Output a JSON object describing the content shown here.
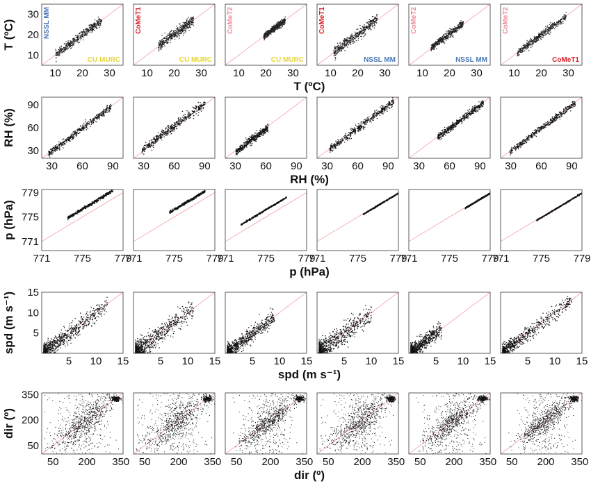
{
  "legend_colors": {
    "NSSL MM": "#4a78b4",
    "CoMeT1": "#d6202a",
    "CoMeT2": "#f08a96",
    "CU MURC": "#e7d534"
  },
  "one_to_one_line_color": "#f2a0a6",
  "chart_data": [
    {
      "variable": "T",
      "type": "scatter",
      "ylabel": "T (ºC)",
      "xlabel": "T (ºC)",
      "xlim": [
        5,
        35
      ],
      "ylim": [
        5,
        35
      ],
      "xticks": [
        10,
        20,
        30
      ],
      "yticks": [
        10,
        20,
        30
      ],
      "panel_labels": [
        {
          "y_source": "NSSL MM",
          "x_source": "CU MURC"
        },
        {
          "y_source": "CoMeT1",
          "x_source": "CU MURC"
        },
        {
          "y_source": "CoMeT2",
          "x_source": "CU MURC"
        },
        {
          "y_source": "CoMeT1",
          "x_source": "NSSL MM"
        },
        {
          "y_source": "CoMeT2",
          "x_source": "NSSL MM"
        },
        {
          "y_source": "CoMeT2",
          "x_source": "CoMeT1"
        }
      ],
      "panels": [
        {
          "x_range": [
            10,
            27
          ],
          "bias": 0.3,
          "spread": 1.0
        },
        {
          "x_range": [
            14,
            27
          ],
          "bias": 0.5,
          "spread": 1.3
        },
        {
          "x_range": [
            19,
            27
          ],
          "bias": 0.3,
          "spread": 0.8
        },
        {
          "x_range": [
            11,
            27
          ],
          "bias": 0.6,
          "spread": 1.3
        },
        {
          "x_range": [
            13,
            25
          ],
          "bias": 0.7,
          "spread": 0.9
        },
        {
          "x_range": [
            11,
            29
          ],
          "bias": 0.3,
          "spread": 0.9
        }
      ]
    },
    {
      "variable": "RH",
      "type": "scatter",
      "ylabel": "RH (%)",
      "xlabel": "RH (%)",
      "xlim": [
        20,
        100
      ],
      "ylim": [
        20,
        100
      ],
      "xticks": [
        30,
        60,
        90
      ],
      "yticks": [
        30,
        60,
        90
      ],
      "panels": [
        {
          "x_range": [
            26,
            88
          ],
          "bias": 0,
          "spread": 2.3
        },
        {
          "x_range": [
            28,
            90
          ],
          "bias": 3,
          "spread": 3.0
        },
        {
          "x_range": [
            30,
            62
          ],
          "bias": -1,
          "spread": 2.5
        },
        {
          "x_range": [
            32,
            95
          ],
          "bias": 0,
          "spread": 2.5
        },
        {
          "x_range": [
            48,
            93
          ],
          "bias": 0,
          "spread": 2.2
        },
        {
          "x_range": [
            28,
            93
          ],
          "bias": 0,
          "spread": 2.0
        }
      ]
    },
    {
      "variable": "p",
      "type": "scatter",
      "ylabel": "p (hPa)",
      "xlabel": "p (hPa)",
      "xlim": [
        771,
        779
      ],
      "ylim": [
        769.5,
        779.5
      ],
      "xticks": [
        771,
        775,
        779
      ],
      "yticks": [
        771,
        775,
        779
      ],
      "panels": [
        {
          "x_range": [
            773.5,
            778
          ],
          "bias": 1.4,
          "spread": 0.12
        },
        {
          "x_range": [
            774.5,
            778
          ],
          "bias": 1.3,
          "spread": 0.1
        },
        {
          "x_range": [
            772.5,
            777
          ],
          "bias": 1.3,
          "spread": 0.06
        },
        {
          "x_range": [
            775.5,
            779
          ],
          "bias": 0,
          "spread": 0.05
        },
        {
          "x_range": [
            776.5,
            779
          ],
          "bias": 0,
          "spread": 0.05
        },
        {
          "x_range": [
            774.5,
            779
          ],
          "bias": 0,
          "spread": 0.05
        }
      ]
    },
    {
      "variable": "spd",
      "type": "scatter",
      "ylabel": "spd (m s⁻¹)",
      "xlabel": "spd (m s⁻¹)",
      "xlim": [
        0,
        15
      ],
      "ylim": [
        0,
        15
      ],
      "xticks": [
        5,
        10,
        15
      ],
      "yticks": [
        5,
        10,
        15
      ],
      "panels": [
        {
          "x_range": [
            0.3,
            12
          ],
          "bias": 0,
          "spread": 1.0
        },
        {
          "x_range": [
            0.3,
            11
          ],
          "bias": 0,
          "spread": 1.2
        },
        {
          "x_range": [
            0.3,
            9
          ],
          "bias": 0,
          "spread": 0.9
        },
        {
          "x_range": [
            0.3,
            10
          ],
          "bias": 0,
          "spread": 1.3
        },
        {
          "x_range": [
            0.3,
            6
          ],
          "bias": 0,
          "spread": 0.9
        },
        {
          "x_range": [
            0.3,
            13
          ],
          "bias": 0,
          "spread": 0.9
        }
      ]
    },
    {
      "variable": "dir",
      "type": "scatter",
      "ylabel": "dir (º)",
      "xlabel": "dir (º)",
      "xlim": [
        0,
        360
      ],
      "ylim": [
        0,
        360
      ],
      "xticks": [
        50,
        200,
        350
      ],
      "yticks": [
        50,
        200,
        350
      ],
      "panels": [
        {
          "x_range": [
            10,
            350
          ],
          "bias": 0,
          "spread": 40
        },
        {
          "x_range": [
            10,
            350
          ],
          "bias": 0,
          "spread": 45
        },
        {
          "x_range": [
            60,
            280
          ],
          "bias": 0,
          "spread": 30
        },
        {
          "x_range": [
            10,
            350
          ],
          "bias": 0,
          "spread": 40
        },
        {
          "x_range": [
            60,
            340
          ],
          "bias": 0,
          "spread": 35
        },
        {
          "x_range": [
            100,
            330
          ],
          "bias": 0,
          "spread": 30
        }
      ]
    }
  ]
}
